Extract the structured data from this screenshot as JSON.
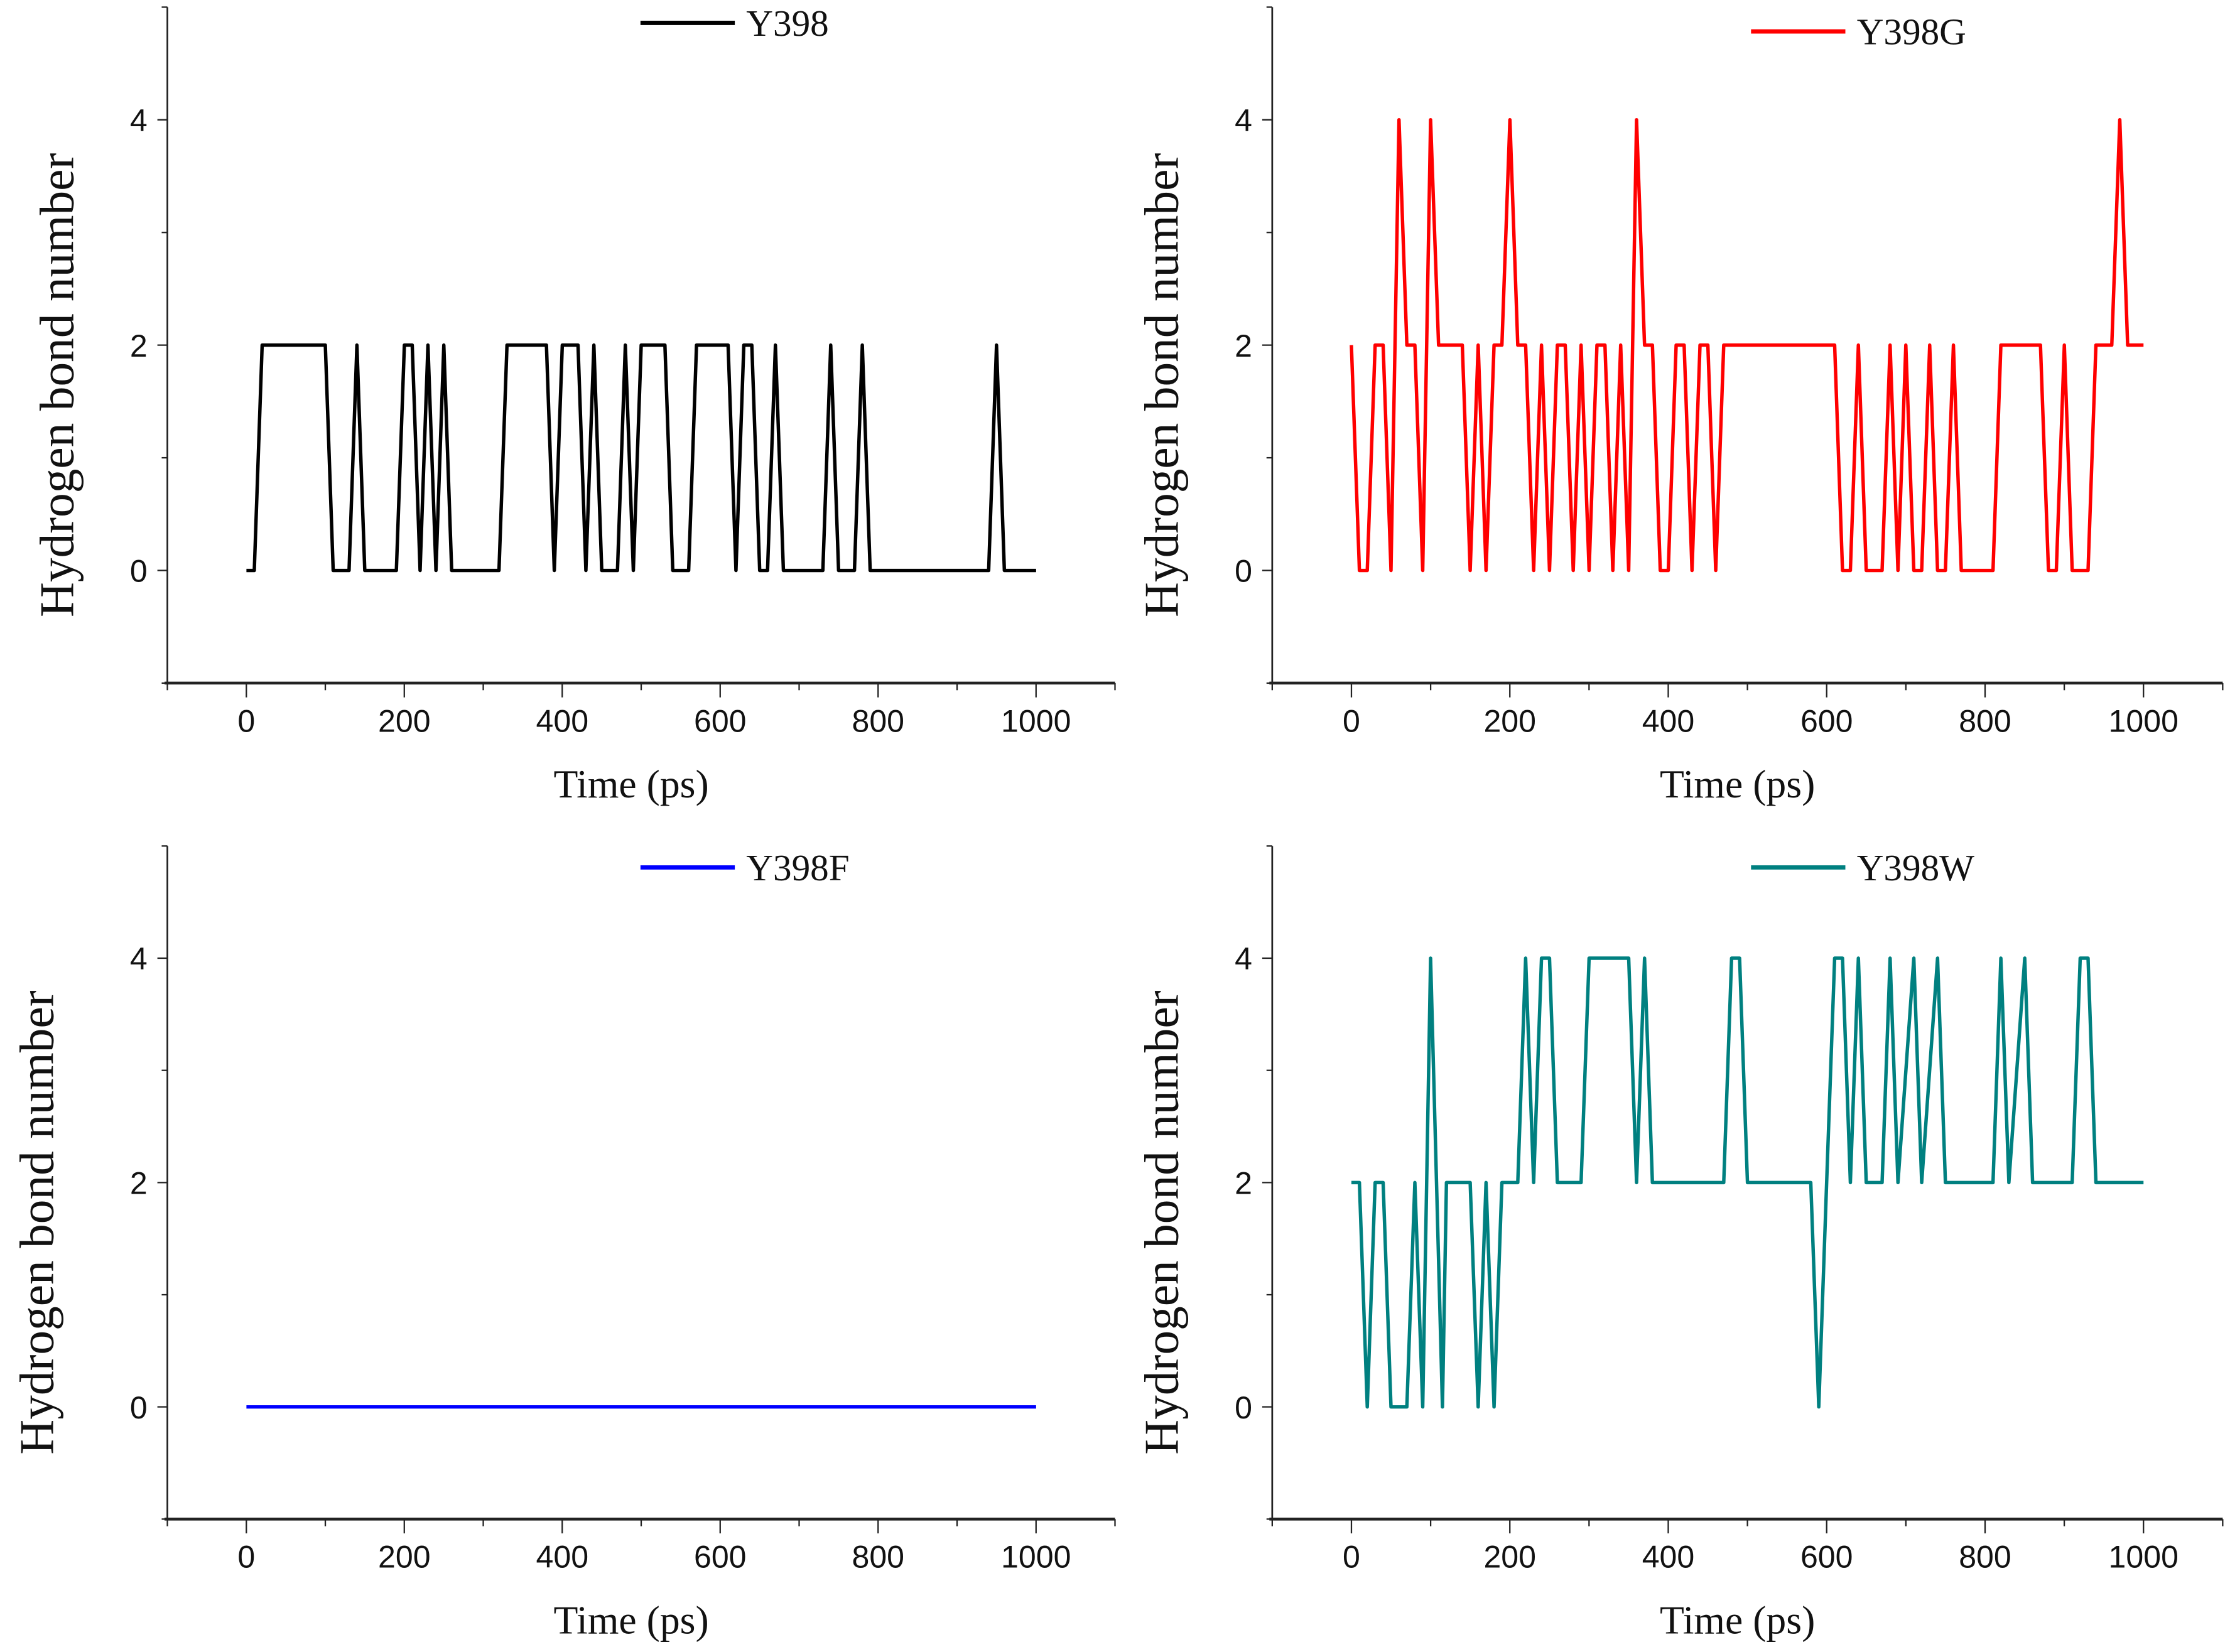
{
  "chart_data": [
    {
      "type": "line",
      "title": "",
      "xlabel": "Time (ps)",
      "ylabel": "Hydrogen bond number",
      "xlim": [
        -100,
        1100
      ],
      "ylim": [
        -1,
        5
      ],
      "xticks": [
        "0",
        "200",
        "400",
        "600",
        "800",
        "1000"
      ],
      "yticks": [
        "0",
        "2",
        "4"
      ],
      "legend_position": "top-center",
      "series": [
        {
          "name": "Y398",
          "color": "#000000",
          "points": [
            [
              0,
              0
            ],
            [
              10,
              0
            ],
            [
              20,
              2
            ],
            [
              100,
              2
            ],
            [
              110,
              0
            ],
            [
              130,
              0
            ],
            [
              140,
              2
            ],
            [
              150,
              0
            ],
            [
              190,
              0
            ],
            [
              200,
              2
            ],
            [
              210,
              2
            ],
            [
              220,
              0
            ],
            [
              230,
              2
            ],
            [
              240,
              0
            ],
            [
              250,
              2
            ],
            [
              260,
              0
            ],
            [
              320,
              0
            ],
            [
              330,
              2
            ],
            [
              380,
              2
            ],
            [
              390,
              0
            ],
            [
              400,
              2
            ],
            [
              420,
              2
            ],
            [
              430,
              0
            ],
            [
              440,
              2
            ],
            [
              450,
              0
            ],
            [
              470,
              0
            ],
            [
              480,
              2
            ],
            [
              490,
              0
            ],
            [
              500,
              2
            ],
            [
              530,
              2
            ],
            [
              540,
              0
            ],
            [
              560,
              0
            ],
            [
              570,
              2
            ],
            [
              610,
              2
            ],
            [
              620,
              0
            ],
            [
              630,
              2
            ],
            [
              640,
              2
            ],
            [
              650,
              0
            ],
            [
              660,
              0
            ],
            [
              670,
              2
            ],
            [
              680,
              0
            ],
            [
              730,
              0
            ],
            [
              740,
              2
            ],
            [
              750,
              0
            ],
            [
              770,
              0
            ],
            [
              780,
              2
            ],
            [
              790,
              0
            ],
            [
              940,
              0
            ],
            [
              950,
              2
            ],
            [
              960,
              0
            ],
            [
              1000,
              0
            ]
          ]
        }
      ]
    },
    {
      "type": "line",
      "title": "",
      "xlabel": "Time (ps)",
      "ylabel": "Hydrogen bond number",
      "xlim": [
        -100,
        1100
      ],
      "ylim": [
        -1,
        5
      ],
      "xticks": [
        "0",
        "200",
        "400",
        "600",
        "800",
        "1000"
      ],
      "yticks": [
        "0",
        "2",
        "4"
      ],
      "legend_position": "top-center",
      "series": [
        {
          "name": "Y398G",
          "color": "#ff0000",
          "points": [
            [
              0,
              2
            ],
            [
              10,
              0
            ],
            [
              20,
              0
            ],
            [
              30,
              2
            ],
            [
              40,
              2
            ],
            [
              50,
              0
            ],
            [
              60,
              4
            ],
            [
              70,
              2
            ],
            [
              80,
              2
            ],
            [
              90,
              0
            ],
            [
              100,
              4
            ],
            [
              110,
              2
            ],
            [
              140,
              2
            ],
            [
              150,
              0
            ],
            [
              160,
              2
            ],
            [
              170,
              0
            ],
            [
              180,
              2
            ],
            [
              190,
              2
            ],
            [
              200,
              4
            ],
            [
              210,
              2
            ],
            [
              220,
              2
            ],
            [
              230,
              0
            ],
            [
              240,
              2
            ],
            [
              250,
              0
            ],
            [
              260,
              2
            ],
            [
              270,
              2
            ],
            [
              280,
              0
            ],
            [
              290,
              2
            ],
            [
              300,
              0
            ],
            [
              310,
              2
            ],
            [
              320,
              2
            ],
            [
              330,
              0
            ],
            [
              340,
              2
            ],
            [
              350,
              0
            ],
            [
              360,
              4
            ],
            [
              370,
              2
            ],
            [
              380,
              2
            ],
            [
              390,
              0
            ],
            [
              400,
              0
            ],
            [
              410,
              2
            ],
            [
              420,
              2
            ],
            [
              430,
              0
            ],
            [
              440,
              2
            ],
            [
              450,
              2
            ],
            [
              460,
              0
            ],
            [
              470,
              2
            ],
            [
              610,
              2
            ],
            [
              620,
              0
            ],
            [
              630,
              0
            ],
            [
              640,
              2
            ],
            [
              650,
              0
            ],
            [
              670,
              0
            ],
            [
              680,
              2
            ],
            [
              690,
              0
            ],
            [
              700,
              2
            ],
            [
              710,
              0
            ],
            [
              720,
              0
            ],
            [
              730,
              2
            ],
            [
              740,
              0
            ],
            [
              750,
              0
            ],
            [
              760,
              2
            ],
            [
              770,
              0
            ],
            [
              810,
              0
            ],
            [
              820,
              2
            ],
            [
              870,
              2
            ],
            [
              880,
              0
            ],
            [
              890,
              0
            ],
            [
              900,
              2
            ],
            [
              910,
              0
            ],
            [
              930,
              0
            ],
            [
              940,
              2
            ],
            [
              960,
              2
            ],
            [
              970,
              4
            ],
            [
              980,
              2
            ],
            [
              1000,
              2
            ]
          ]
        }
      ]
    },
    {
      "type": "line",
      "title": "",
      "xlabel": "Time (ps)",
      "ylabel": "Hydrogen bond number",
      "xlim": [
        -100,
        1100
      ],
      "ylim": [
        -1,
        5
      ],
      "xticks": [
        "0",
        "200",
        "400",
        "600",
        "800",
        "1000"
      ],
      "yticks": [
        "0",
        "2",
        "4"
      ],
      "legend_position": "top-center",
      "series": [
        {
          "name": "Y398F",
          "color": "#0000ff",
          "points": [
            [
              0,
              0
            ],
            [
              1000,
              0
            ]
          ]
        }
      ]
    },
    {
      "type": "line",
      "title": "",
      "xlabel": "Time (ps)",
      "ylabel": "Hydrogen bond number",
      "xlim": [
        -100,
        1100
      ],
      "ylim": [
        -1,
        5
      ],
      "xticks": [
        "0",
        "200",
        "400",
        "600",
        "800",
        "1000"
      ],
      "yticks": [
        "0",
        "2",
        "4"
      ],
      "legend_position": "top-center",
      "series": [
        {
          "name": "Y398W",
          "color": "#008080",
          "points": [
            [
              0,
              2
            ],
            [
              10,
              2
            ],
            [
              20,
              0
            ],
            [
              30,
              2
            ],
            [
              40,
              2
            ],
            [
              50,
              0
            ],
            [
              70,
              0
            ],
            [
              80,
              2
            ],
            [
              90,
              0
            ],
            [
              100,
              4
            ],
            [
              115,
              0
            ],
            [
              120,
              2
            ],
            [
              150,
              2
            ],
            [
              160,
              0
            ],
            [
              170,
              2
            ],
            [
              180,
              0
            ],
            [
              190,
              2
            ],
            [
              210,
              2
            ],
            [
              220,
              4
            ],
            [
              230,
              2
            ],
            [
              240,
              4
            ],
            [
              250,
              4
            ],
            [
              260,
              2
            ],
            [
              290,
              2
            ],
            [
              300,
              4
            ],
            [
              350,
              4
            ],
            [
              360,
              2
            ],
            [
              370,
              4
            ],
            [
              380,
              2
            ],
            [
              470,
              2
            ],
            [
              480,
              4
            ],
            [
              490,
              4
            ],
            [
              500,
              2
            ],
            [
              580,
              2
            ],
            [
              590,
              0
            ],
            [
              600,
              2
            ],
            [
              610,
              4
            ],
            [
              620,
              4
            ],
            [
              630,
              2
            ],
            [
              640,
              4
            ],
            [
              650,
              2
            ],
            [
              670,
              2
            ],
            [
              680,
              4
            ],
            [
              690,
              2
            ],
            [
              710,
              4
            ],
            [
              720,
              2
            ],
            [
              740,
              4
            ],
            [
              750,
              2
            ],
            [
              810,
              2
            ],
            [
              820,
              4
            ],
            [
              830,
              2
            ],
            [
              850,
              4
            ],
            [
              860,
              2
            ],
            [
              910,
              2
            ],
            [
              920,
              4
            ],
            [
              930,
              4
            ],
            [
              940,
              2
            ],
            [
              1000,
              2
            ]
          ]
        }
      ]
    }
  ]
}
